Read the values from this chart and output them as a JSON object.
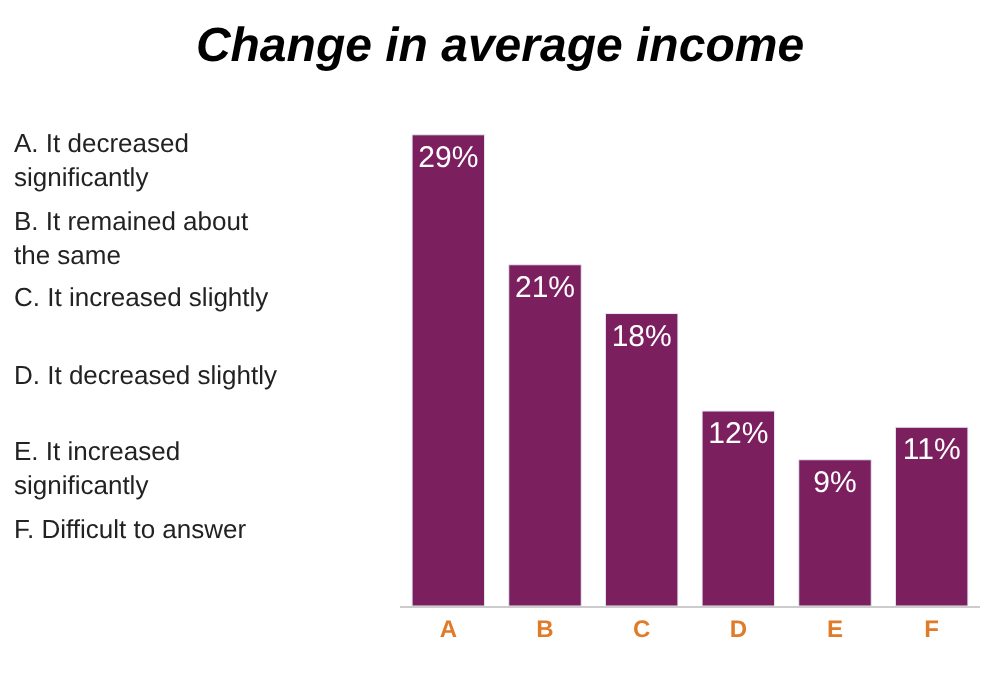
{
  "chart_data": {
    "type": "bar",
    "title": "Change in average income",
    "categories": [
      "A",
      "B",
      "C",
      "D",
      "E",
      "F"
    ],
    "values": [
      29,
      21,
      18,
      12,
      9,
      11
    ],
    "value_labels": [
      "29%",
      "21%",
      "18%",
      "12%",
      "9%",
      "11%"
    ],
    "color": "#7b1f5e",
    "annotations": [
      "A. It decreased\nsignificantly",
      "B. It remained about\nthe same",
      "C. It increased slightly",
      "D. It decreased slightly",
      "E. It increased\nsignificantly",
      "F. Difficult to answer"
    ],
    "legend": false
  }
}
